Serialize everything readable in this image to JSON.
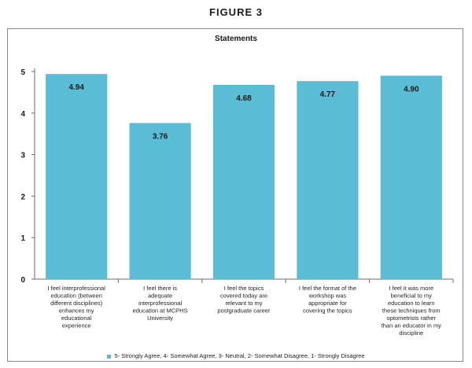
{
  "figure_title": "FIGURE 3",
  "colors": {
    "bar": "#5bbcd6",
    "axis": "#6b6b6b"
  },
  "chart_data": {
    "type": "bar",
    "title": "Statements",
    "xlabel": "",
    "ylabel": "",
    "ylim": [
      0,
      5
    ],
    "yticks": [
      0,
      1,
      2,
      3,
      4,
      5
    ],
    "grid": false,
    "legend_position": "bottom",
    "categories": [
      [
        "I feel interprofessional",
        "education (between",
        "different disciplines)",
        "enhances my",
        "educational",
        "experience"
      ],
      [
        "I feel there is",
        "adequate",
        "interprofessional",
        "education at MCPHS",
        "University"
      ],
      [
        "I feel the topics",
        "covered today are",
        "relevant to my",
        "postgraduate career"
      ],
      [
        "I feel the format of the",
        "workshop was",
        "appropriate for",
        "covering the topics"
      ],
      [
        "I feel it was more",
        "beneficial to my",
        "education to learn",
        "these techniques from",
        "optometrists rather",
        "than an educator in my",
        "discipline"
      ]
    ],
    "values": [
      4.94,
      3.76,
      4.68,
      4.77,
      4.9
    ],
    "value_labels": [
      "4.94",
      "3.76",
      "4.68",
      "4.77",
      "4.90"
    ],
    "legend": "5- Strongly Agree,   4- Somewhat Agree,   3- Neutral,   2- Somewhat Disagree,   1- Strongly Disagree"
  }
}
